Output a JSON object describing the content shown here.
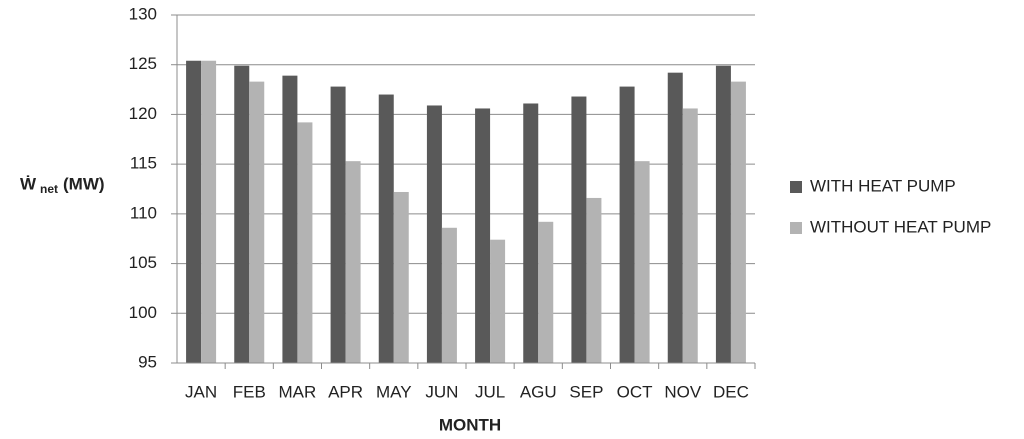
{
  "chart_data": {
    "type": "bar",
    "ylabel": "Ẇ",
    "ylabel_sub": "net",
    "ylabel_unit": "(MW)",
    "xlabel": "MONTH",
    "categories": [
      "JAN",
      "FEB",
      "MAR",
      "APR",
      "MAY",
      "JUN",
      "JUL",
      "AGU",
      "SEP",
      "OCT",
      "NOV",
      "DEC"
    ],
    "series": [
      {
        "name": "WITH HEAT PUMP",
        "color": "#595959",
        "values": [
          125.4,
          124.9,
          123.9,
          122.8,
          122.0,
          120.9,
          120.6,
          121.1,
          121.8,
          122.8,
          124.2,
          124.9
        ]
      },
      {
        "name": "WITHOUT HEAT PUMP",
        "color": "#b3b3b3",
        "values": [
          125.4,
          123.3,
          119.2,
          115.3,
          112.2,
          108.6,
          107.4,
          109.2,
          111.6,
          115.3,
          120.6,
          123.3
        ]
      }
    ],
    "ylim": [
      95,
      130
    ],
    "yticks": [
      95,
      100,
      105,
      110,
      115,
      120,
      125,
      130
    ],
    "grid": true,
    "legend": "right"
  }
}
